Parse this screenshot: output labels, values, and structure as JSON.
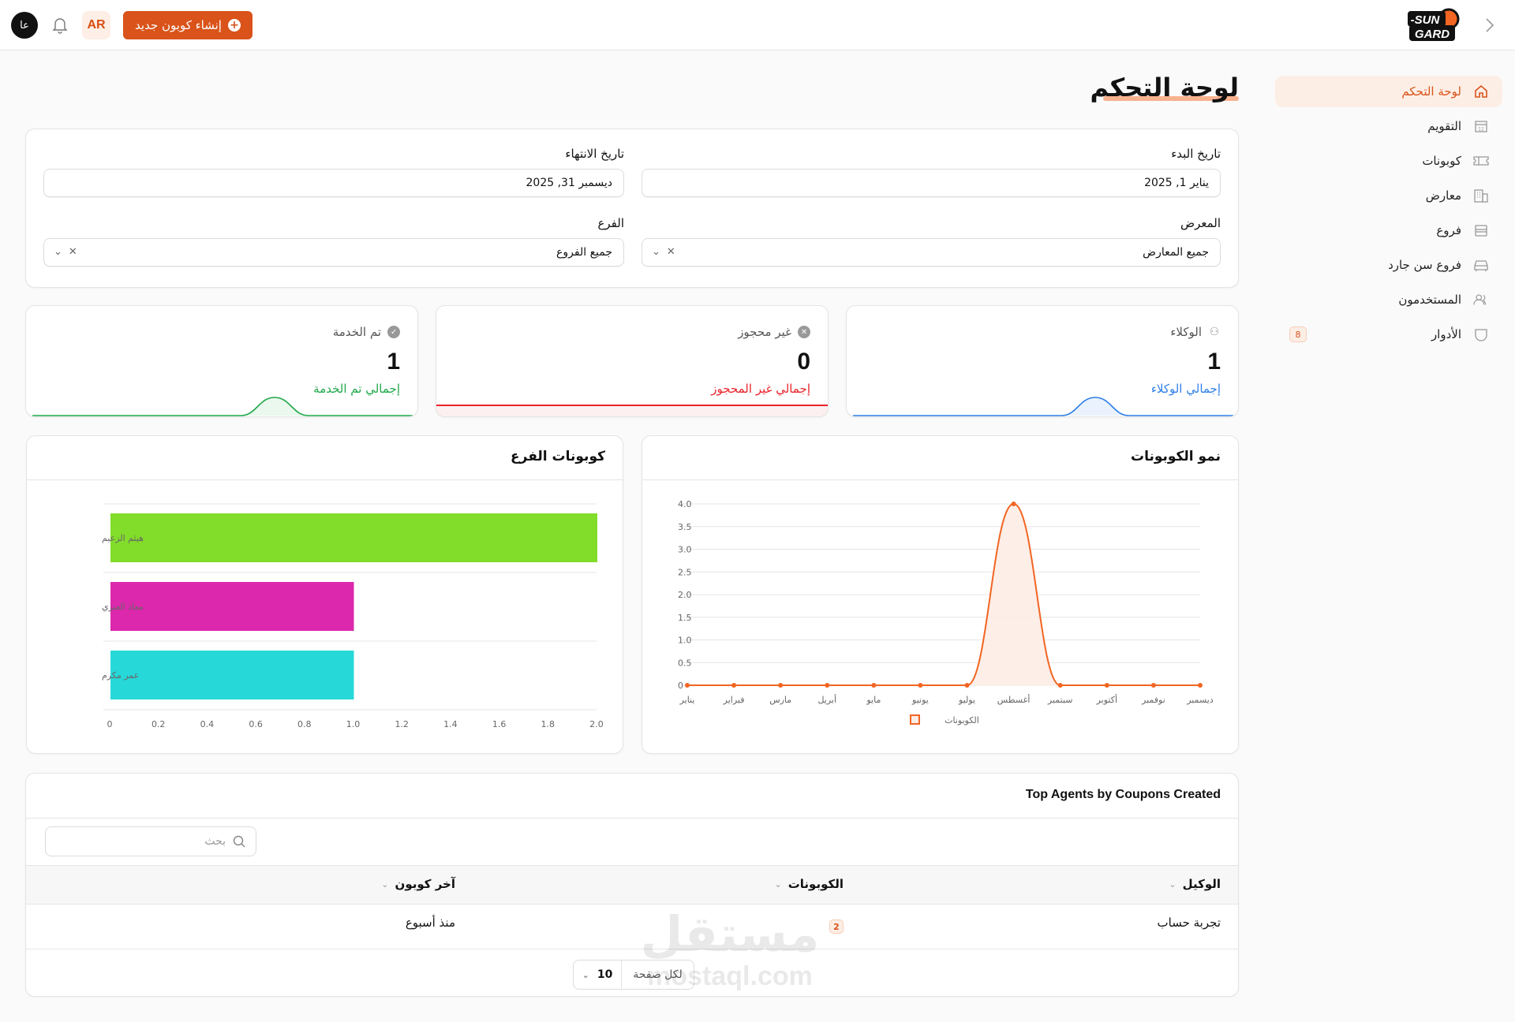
{
  "topbar": {
    "create_button": "إنشاء كوبون جديد",
    "language_toggle": "عا",
    "user_initials": "AR",
    "brand": "SUN-GARD",
    "colors": {
      "accent": "#d9531a",
      "accent_soft": "#fdeee5"
    }
  },
  "sidebar": {
    "items": [
      {
        "label": "لوحة التحكم",
        "icon": "home-icon",
        "active": true
      },
      {
        "label": "التقويم",
        "icon": "calendar-icon"
      },
      {
        "label": "كوبونات",
        "icon": "ticket-icon"
      },
      {
        "label": "معارض",
        "icon": "building-icon"
      },
      {
        "label": "فروع",
        "icon": "store-icon"
      },
      {
        "label": "فروع سن جارد",
        "icon": "car-icon"
      },
      {
        "label": "المستخدمون",
        "icon": "users-icon"
      },
      {
        "label": "الأدوار",
        "icon": "shield-icon",
        "badge": "8"
      }
    ]
  },
  "page": {
    "title": "لوحة التحكم"
  },
  "filters": {
    "start_date": {
      "label": "تاريخ البدء",
      "value": "يناير 1, 2025"
    },
    "end_date": {
      "label": "تاريخ الانتهاء",
      "value": "ديسمبر 31, 2025"
    },
    "showroom": {
      "label": "المعرض",
      "value": "جميع المعارض"
    },
    "branch": {
      "label": "الفرع",
      "value": "جميع الفروع"
    }
  },
  "stats": [
    {
      "label": "الوكلاء",
      "value": "1",
      "sub": "إجمالي الوكلاء",
      "color": "#2f7fe6",
      "icon": "users-group-icon"
    },
    {
      "label": "غير محجوز",
      "value": "0",
      "sub": "إجمالي غير المحجوز",
      "color": "#e8232b",
      "icon": "x-circle-icon"
    },
    {
      "label": "تم الخدمة",
      "value": "1",
      "sub": "إجمالي تم الخدمة",
      "color": "#1fa84a",
      "icon": "check-circle-icon"
    }
  ],
  "chart_data": [
    {
      "type": "area",
      "title": "نمو الكوبونات",
      "categories": [
        "يناير",
        "فبراير",
        "مارس",
        "أبريل",
        "مايو",
        "يونيو",
        "يوليو",
        "أغسطس",
        "سبتمبر",
        "أكتوبر",
        "نوفمبر",
        "ديسمبر"
      ],
      "series": [
        {
          "name": "الكوبونات",
          "values": [
            0,
            0,
            0,
            0,
            0,
            0,
            0,
            4,
            0,
            0,
            0,
            0
          ],
          "color": "#f26522"
        }
      ],
      "yticks": [
        "0",
        "0.5",
        "1.0",
        "1.5",
        "2.0",
        "2.5",
        "3.0",
        "3.5",
        "4.0"
      ],
      "ylim": [
        0,
        4
      ],
      "grid": true,
      "legend_position": "bottom"
    },
    {
      "type": "bar",
      "orientation": "horizontal",
      "title": "كوبونات الفرع",
      "categories": [
        "هيثم الزعيم",
        "معاذ العنزي",
        "عمر مكرم"
      ],
      "values": [
        2,
        1,
        1
      ],
      "colors": [
        "#82dc2a",
        "#db28ac",
        "#27d8d8"
      ],
      "xticks": [
        "0",
        "0.2",
        "0.4",
        "0.6",
        "0.8",
        "1.0",
        "1.2",
        "1.4",
        "1.6",
        "1.8",
        "2.0"
      ],
      "xlim": [
        0,
        2
      ],
      "grid": true
    }
  ],
  "table": {
    "title": "Top Agents by Coupons Created",
    "search_placeholder": "بحث",
    "columns": [
      "الوكيل",
      "الكوبونات",
      "آخر كوبون"
    ],
    "rows": [
      {
        "agent": "تجربة حساب",
        "coupons": "2",
        "last_coupon": "منذ أسبوع"
      }
    ],
    "per_page_label": "لكل صفحة",
    "per_page_value": "10"
  },
  "watermark": {
    "line1": "مستقل",
    "line2": "mostaql.com"
  }
}
